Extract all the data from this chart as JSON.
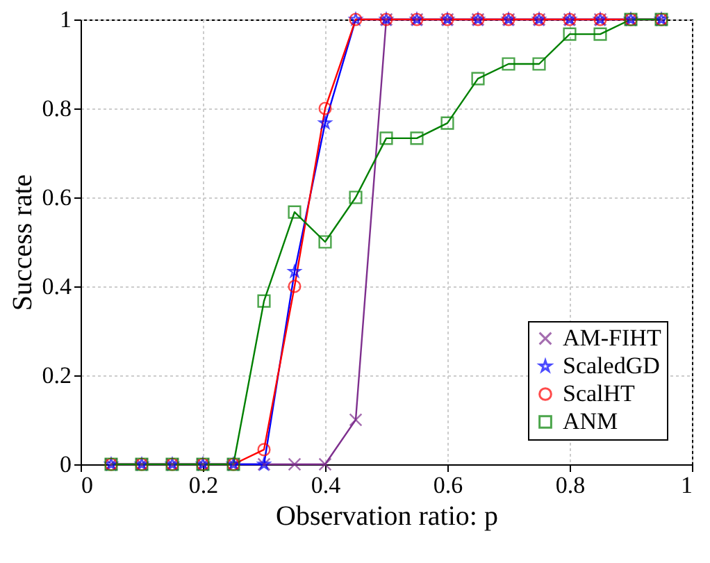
{
  "chart_data": {
    "type": "line",
    "xlabel": "Observation ratio: p",
    "ylabel": "Success rate",
    "x": [
      0.05,
      0.1,
      0.15,
      0.2,
      0.25,
      0.3,
      0.35,
      0.4,
      0.45,
      0.5,
      0.55,
      0.6,
      0.65,
      0.7,
      0.75,
      0.8,
      0.85,
      0.9,
      0.95
    ],
    "series": [
      {
        "name": "AM-FIHT",
        "color": "#7e2f8e",
        "marker": "cross",
        "values": [
          0,
          0,
          0,
          0,
          0,
          0,
          0,
          0,
          0.1,
          1,
          1,
          1,
          1,
          1,
          1,
          1,
          1,
          1,
          1
        ]
      },
      {
        "name": "ScaledGD",
        "color": "#0000ff",
        "marker": "star",
        "values": [
          0,
          0,
          0,
          0,
          0,
          0,
          0.433,
          0.767,
          1,
          1,
          1,
          1,
          1,
          1,
          1,
          1,
          1,
          1,
          1
        ]
      },
      {
        "name": "ScalHT",
        "color": "#ff0000",
        "marker": "circle",
        "values": [
          0,
          0,
          0,
          0,
          0,
          0.033,
          0.4,
          0.8,
          1,
          1,
          1,
          1,
          1,
          1,
          1,
          1,
          1,
          1,
          1
        ]
      },
      {
        "name": "ANM",
        "color": "#008000",
        "marker": "square",
        "values": [
          0,
          0,
          0,
          0,
          0,
          0.367,
          0.567,
          0.5,
          0.6,
          0.733,
          0.733,
          0.767,
          0.867,
          0.9,
          0.9,
          0.967,
          0.967,
          1,
          1
        ]
      }
    ],
    "xlim": [
      0,
      1
    ],
    "xticks": [
      0,
      0.2,
      0.4,
      0.6,
      0.8,
      1
    ],
    "ylim": [
      0,
      1
    ],
    "yticks": [
      0,
      0.2,
      0.4,
      0.6,
      0.8,
      1
    ],
    "grid": true,
    "legend": "bottom right",
    "line_style": "solid"
  }
}
